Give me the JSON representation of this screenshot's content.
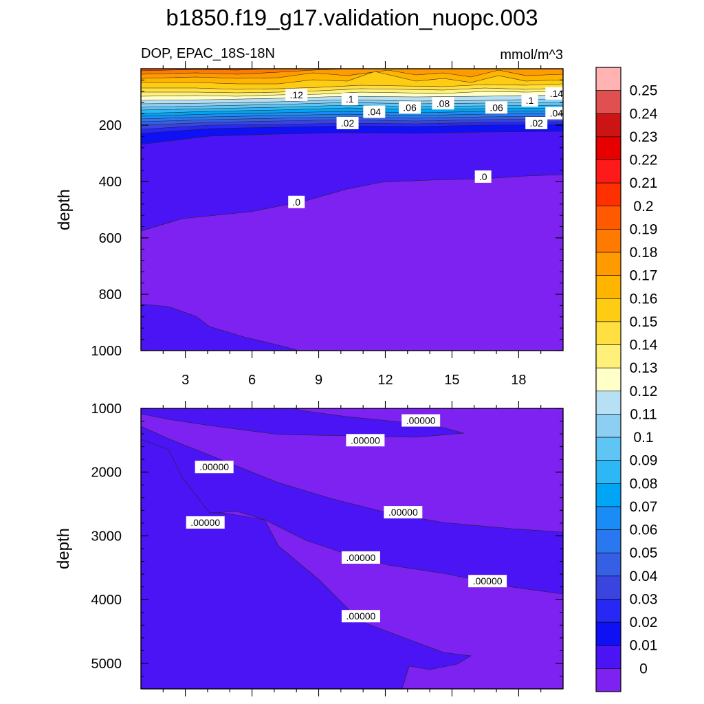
{
  "chart_data": {
    "type": "contour",
    "title": "b1850.f19_g17.validation_nuopc.003",
    "subtitle_left": "DOP, EPAC_18S-18N",
    "subtitle_right": "mmol/m^3",
    "panels": [
      {
        "id": "upper",
        "ylabel": "depth",
        "xlim": [
          1,
          20
        ],
        "ylim": [
          1000,
          0
        ],
        "y_ticks": [
          200,
          400,
          600,
          800,
          1000
        ],
        "x_ticks": [
          3,
          6,
          9,
          12,
          15,
          18
        ],
        "contour_labels": [
          {
            "text": ".12",
            "x": 8,
            "y": 95
          },
          {
            "text": ".1",
            "x": 10.4,
            "y": 110
          },
          {
            "text": ".04",
            "x": 11.5,
            "y": 155
          },
          {
            "text": ".06",
            "x": 13.1,
            "y": 140
          },
          {
            "text": ".08",
            "x": 14.6,
            "y": 125
          },
          {
            "text": ".06",
            "x": 17,
            "y": 140
          },
          {
            "text": ".1",
            "x": 18.5,
            "y": 115
          },
          {
            "text": ".14",
            "x": 19.7,
            "y": 90
          },
          {
            "text": ".02",
            "x": 10.3,
            "y": 195
          },
          {
            "text": ".02",
            "x": 18.8,
            "y": 195
          },
          {
            "text": ".04",
            "x": 19.7,
            "y": 160
          },
          {
            "text": ".0",
            "x": 8,
            "y": 475
          },
          {
            "text": ".0",
            "x": 16.4,
            "y": 385
          }
        ]
      },
      {
        "id": "lower",
        "ylabel": "depth",
        "xlim": [
          1,
          20
        ],
        "ylim": [
          5400,
          1000
        ],
        "y_ticks": [
          1000,
          2000,
          3000,
          4000,
          5000
        ],
        "contour_labels": [
          {
            "text": ".00000",
            "x": 13.6,
            "y": 1200
          },
          {
            "text": ".00000",
            "x": 11.1,
            "y": 1510
          },
          {
            "text": ".00000",
            "x": 4.3,
            "y": 1930
          },
          {
            "text": ".00000",
            "x": 12.8,
            "y": 2640
          },
          {
            "text": ".00000",
            "x": 3.9,
            "y": 2800
          },
          {
            "text": ".00000",
            "x": 10.9,
            "y": 3350
          },
          {
            "text": ".00000",
            "x": 16.6,
            "y": 3720
          },
          {
            "text": ".00000",
            "x": 10.9,
            "y": 4270
          }
        ]
      }
    ],
    "colorbar": {
      "labels": [
        "0.25",
        "0.24",
        "0.23",
        "0.22",
        "0.21",
        "0.2",
        "0.19",
        "0.18",
        "0.17",
        "0.16",
        "0.15",
        "0.14",
        "0.13",
        "0.12",
        "0.11",
        "0.1",
        "0.09",
        "0.08",
        "0.07",
        "0.06",
        "0.05",
        "0.04",
        "0.03",
        "0.02",
        "0.01",
        "0"
      ],
      "colors": [
        "#ffb3b3",
        "#e05050",
        "#cc1414",
        "#e60000",
        "#ff1a1a",
        "#ff3000",
        "#ff5a00",
        "#ff7a00",
        "#ff9a00",
        "#ffb400",
        "#ffcc14",
        "#ffe040",
        "#fff07a",
        "#ffffc8",
        "#b8e0f5",
        "#8ccff2",
        "#5ec5f5",
        "#2db8f5",
        "#00a6f5",
        "#1a8cf5",
        "#2a78f0",
        "#3560e6",
        "#3a45e0",
        "#2828f5",
        "#1010f5",
        "#4a14f5",
        "#7d22f0"
      ]
    }
  }
}
